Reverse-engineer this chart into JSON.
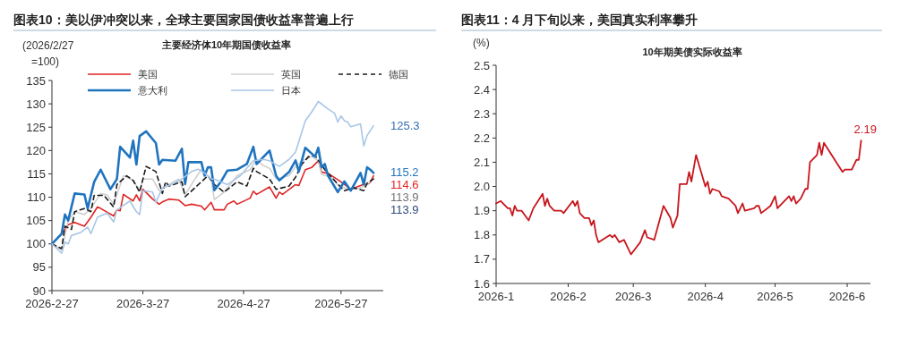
{
  "chart_data": [
    {
      "type": "line",
      "title": "图表10：美以伊冲突以来，全球主要国家国债收益率普遍上行",
      "subtitle": "主要经济体10年期国债收益率",
      "ylabel": "(2026/2/27=100)",
      "xlim": [
        "2026-02-27",
        "2026-06-09"
      ],
      "xticks": [
        {
          "value": "2026-02-27",
          "label": "2026-2-27"
        },
        {
          "value": "2026-03-27",
          "label": "2026-3-27"
        },
        {
          "value": "2026-04-27",
          "label": "2026-4-27"
        },
        {
          "value": "2026-05-27",
          "label": "2026-5-27"
        }
      ],
      "ylim": [
        90,
        135
      ],
      "yticks": [
        90,
        95,
        100,
        105,
        110,
        115,
        120,
        125,
        130,
        135
      ],
      "legend": "top",
      "series": [
        {
          "name": "美国",
          "color": "#e02424",
          "x": [
            "2026-02-27",
            "2026-03-02",
            "2026-03-04",
            "2026-03-06",
            "2026-03-09",
            "2026-03-11",
            "2026-03-13",
            "2026-03-14",
            "2026-03-18",
            "2026-03-19",
            "2026-03-20",
            "2026-03-21",
            "2026-03-24",
            "2026-03-25",
            "2026-03-26",
            "2026-03-27",
            "2026-03-30",
            "2026-04-01",
            "2026-04-02",
            "2026-04-04",
            "2026-04-07",
            "2026-04-09",
            "2026-04-11",
            "2026-04-14",
            "2026-04-15",
            "2026-04-17",
            "2026-04-18",
            "2026-04-21",
            "2026-04-22",
            "2026-04-24",
            "2026-04-25",
            "2026-04-29",
            "2026-04-30",
            "2026-05-01",
            "2026-05-05",
            "2026-05-07",
            "2026-05-08",
            "2026-05-09",
            "2026-05-13",
            "2026-05-14",
            "2026-05-16",
            "2026-05-18",
            "2026-05-20",
            "2026-05-21",
            "2026-05-23",
            "2026-05-27",
            "2026-05-30",
            "2026-06-02",
            "2026-06-03",
            "2026-06-04",
            "2026-06-05",
            "2026-06-06"
          ],
          "values": [
            100,
            102.2,
            104.1,
            104.6,
            103.8,
            105.7,
            107.9,
            107.6,
            106,
            107.3,
            107.1,
            110.6,
            109.2,
            110.5,
            109.2,
            111.7,
            109.6,
            108.5,
            109,
            109.6,
            109.4,
            108.2,
            108.5,
            108.1,
            107.3,
            108.9,
            107.3,
            107.3,
            108.5,
            109.2,
            108.5,
            109.8,
            111.3,
            110.6,
            112.2,
            109.8,
            111.1,
            110.6,
            112.7,
            112.5,
            115.9,
            116.4,
            117.8,
            115.4,
            115.1,
            113.3,
            111.7,
            112.5,
            112.8,
            112.7,
            113.2,
            114.6
          ]
        },
        {
          "name": "英国",
          "color": "#d0d0d0",
          "x": [
            "2026-02-27",
            "2026-03-02",
            "2026-03-04",
            "2026-03-06",
            "2026-03-09",
            "2026-03-11",
            "2026-03-14",
            "2026-03-16",
            "2026-03-18",
            "2026-03-21",
            "2026-03-24",
            "2026-03-26",
            "2026-03-27",
            "2026-03-30",
            "2026-04-01",
            "2026-04-04",
            "2026-04-07",
            "2026-04-09",
            "2026-04-12",
            "2026-04-14",
            "2026-04-17",
            "2026-04-18",
            "2026-04-21",
            "2026-04-25",
            "2026-04-29",
            "2026-05-01",
            "2026-05-03",
            "2026-05-05",
            "2026-05-07",
            "2026-05-11",
            "2026-05-13",
            "2026-05-15",
            "2026-05-18",
            "2026-05-20",
            "2026-05-21",
            "2026-05-24",
            "2026-05-26",
            "2026-05-29",
            "2026-06-02",
            "2026-06-04",
            "2026-06-06"
          ],
          "values": [
            100,
            98.7,
            105,
            106.9,
            106.3,
            107.6,
            110.8,
            110.5,
            108.5,
            114.6,
            113.6,
            111.4,
            113.9,
            113.9,
            111.4,
            112.7,
            113.9,
            110.5,
            113.9,
            115.9,
            113.9,
            109.5,
            111.1,
            114.6,
            115.9,
            118.1,
            116.8,
            116.2,
            113.9,
            114.6,
            116.5,
            117.8,
            118.7,
            117.8,
            114.9,
            114.3,
            112.7,
            111.7,
            112,
            112.8,
            113.9
          ]
        },
        {
          "name": "德国",
          "color": "#1a1a1a",
          "line_style": "dashed",
          "x": [
            "2026-02-27",
            "2026-03-02",
            "2026-03-03",
            "2026-03-05",
            "2026-03-06",
            "2026-03-09",
            "2026-03-11",
            "2026-03-12",
            "2026-03-15",
            "2026-03-18",
            "2026-03-19",
            "2026-03-22",
            "2026-03-24",
            "2026-03-26",
            "2026-03-28",
            "2026-03-31",
            "2026-04-02",
            "2026-04-03",
            "2026-04-04",
            "2026-04-08",
            "2026-04-09",
            "2026-04-12",
            "2026-04-16",
            "2026-04-18",
            "2026-04-21",
            "2026-04-25",
            "2026-04-28",
            "2026-04-30",
            "2026-05-01",
            "2026-05-05",
            "2026-05-07",
            "2026-05-11",
            "2026-05-13",
            "2026-05-15",
            "2026-05-17",
            "2026-05-19",
            "2026-05-22",
            "2026-05-26",
            "2026-05-28",
            "2026-05-31",
            "2026-06-03",
            "2026-06-04",
            "2026-06-06"
          ],
          "values": [
            100,
            99,
            103.8,
            103.1,
            106.9,
            107.6,
            106.9,
            110.4,
            110.4,
            107.9,
            112.7,
            114.6,
            113.6,
            111.1,
            116.6,
            115.5,
            110.8,
            113.3,
            112.4,
            113.3,
            110.1,
            112,
            114.6,
            112.7,
            111.1,
            113.3,
            112.4,
            116.2,
            115.5,
            113.9,
            111.7,
            112.4,
            114.3,
            117.1,
            118.7,
            118.9,
            115.9,
            112.8,
            111.4,
            112,
            111.4,
            113,
            113.9
          ]
        },
        {
          "name": "意大利",
          "color": "#1f74bf",
          "x": [
            "2026-02-27",
            "2026-03-02",
            "2026-03-03",
            "2026-03-04",
            "2026-03-06",
            "2026-03-09",
            "2026-03-10",
            "2026-03-12",
            "2026-03-14",
            "2026-03-17",
            "2026-03-19",
            "2026-03-20",
            "2026-03-23",
            "2026-03-24",
            "2026-03-25",
            "2026-03-26",
            "2026-03-28",
            "2026-03-31",
            "2026-04-01",
            "2026-04-02",
            "2026-04-06",
            "2026-04-08",
            "2026-04-09",
            "2026-04-10",
            "2026-04-14",
            "2026-04-15",
            "2026-04-16",
            "2026-04-17",
            "2026-04-18",
            "2026-04-20",
            "2026-04-22",
            "2026-04-25",
            "2026-04-28",
            "2026-04-30",
            "2026-05-01",
            "2026-05-05",
            "2026-05-07",
            "2026-05-08",
            "2026-05-11",
            "2026-05-13",
            "2026-05-14",
            "2026-05-16",
            "2026-05-19",
            "2026-05-20",
            "2026-05-21",
            "2026-05-22",
            "2026-05-23",
            "2026-05-26",
            "2026-05-28",
            "2026-05-30",
            "2026-06-02",
            "2026-06-03",
            "2026-06-04",
            "2026-06-05",
            "2026-06-06"
          ],
          "values": [
            100,
            102.2,
            106.3,
            105,
            110.8,
            110.6,
            107.6,
            113.3,
            115.9,
            111.7,
            113.9,
            120.8,
            118.5,
            122.1,
            117,
            123.1,
            124.1,
            121.6,
            117,
            118,
            117.8,
            120.4,
            112.8,
            117.5,
            117.5,
            114.6,
            116.4,
            116.4,
            111.5,
            113.3,
            115.7,
            115.9,
            117.1,
            120.8,
            117.1,
            120,
            114.6,
            113.6,
            115.4,
            117.9,
            115.5,
            120.6,
            118.7,
            120.6,
            116.4,
            117.1,
            114.6,
            111.1,
            113.4,
            111.4,
            115.2,
            112.7,
            116.4,
            115.9,
            115.2
          ]
        },
        {
          "name": "日本",
          "color": "#a9c6e6",
          "x": [
            "2026-02-27",
            "2026-03-02",
            "2026-03-03",
            "2026-03-04",
            "2026-03-05",
            "2026-03-08",
            "2026-03-10",
            "2026-03-11",
            "2026-03-13",
            "2026-03-16",
            "2026-03-18",
            "2026-03-19",
            "2026-03-23",
            "2026-03-25",
            "2026-03-26",
            "2026-03-27",
            "2026-03-30",
            "2026-03-31",
            "2026-04-02",
            "2026-04-05",
            "2026-04-08",
            "2026-04-11",
            "2026-04-13",
            "2026-04-15",
            "2026-04-17",
            "2026-04-18",
            "2026-04-22",
            "2026-04-26",
            "2026-04-30",
            "2026-05-03",
            "2026-05-05",
            "2026-05-08",
            "2026-05-11",
            "2026-05-13",
            "2026-05-14",
            "2026-05-16",
            "2026-05-18",
            "2026-05-20",
            "2026-05-23",
            "2026-05-25",
            "2026-05-26",
            "2026-05-27",
            "2026-05-28",
            "2026-05-29",
            "2026-05-30",
            "2026-06-02",
            "2026-06-03",
            "2026-06-04",
            "2026-06-06"
          ],
          "values": [
            100,
            98,
            100.4,
            100,
            101.8,
            102.5,
            103.6,
            102.2,
            105.7,
            106.6,
            104.7,
            107.3,
            109.2,
            106.9,
            106.3,
            111.4,
            111.1,
            108.9,
            112,
            112.8,
            113.9,
            115.5,
            116,
            115.2,
            113.9,
            113.9,
            112.7,
            114.6,
            117.8,
            118.1,
            117.8,
            116.6,
            118.1,
            119.7,
            121.9,
            126.4,
            128.3,
            130.5,
            128.9,
            128,
            126.1,
            127.4,
            126.4,
            126.1,
            125.1,
            125.7,
            121,
            123.2,
            125.3
          ]
        }
      ],
      "annotations": [
        {
          "text": "125.3",
          "x": "2026-06-06",
          "y": 125.3
        },
        {
          "text": "115.2",
          "x": "2026-06-06",
          "y": 115.2
        },
        {
          "text": "114.6",
          "x": "2026-06-06",
          "y": 114.6
        },
        {
          "text": "113.9",
          "x": "2026-06-06",
          "y": 113.9
        },
        {
          "text": "113.9",
          "x": "2026-06-06",
          "y": 113.9
        }
      ]
    },
    {
      "type": "line",
      "title": "图表11：4 月下旬以来，美国真实利率攀升",
      "subtitle": "10年期美债实际收益率",
      "ylabel": "(%)",
      "xlim": [
        "2026-01-01",
        "2026-06-11"
      ],
      "xticks": [
        {
          "value": "2026-01-01",
          "label": "2026-1"
        },
        {
          "value": "2026-02-01",
          "label": "2026-2"
        },
        {
          "value": "2026-03-01",
          "label": "2026-3"
        },
        {
          "value": "2026-04-01",
          "label": "2026-4"
        },
        {
          "value": "2026-05-01",
          "label": "2026-5"
        },
        {
          "value": "2026-06-01",
          "label": "2026-6"
        }
      ],
      "ylim": [
        1.6,
        2.5
      ],
      "yticks": [
        1.6,
        1.7,
        1.8,
        1.9,
        {
          "value": 2,
          "label": "2.0"
        },
        2.1,
        2.2,
        2.3,
        2.4,
        2.5
      ],
      "series": [
        {
          "color": "#c8161d",
          "x": [
            "2026-01-01",
            "2026-01-03",
            "2026-01-06",
            "2026-01-07",
            "2026-01-08",
            "2026-01-09",
            "2026-01-10",
            "2026-01-12",
            "2026-01-15",
            "2026-01-17",
            "2026-01-21",
            "2026-01-22",
            "2026-01-23",
            "2026-01-24",
            "2026-01-26",
            "2026-01-29",
            "2026-01-30",
            "2026-02-03",
            "2026-02-04",
            "2026-02-05",
            "2026-02-06",
            "2026-02-08",
            "2026-02-10",
            "2026-02-11",
            "2026-02-12",
            "2026-02-13",
            "2026-02-14",
            "2026-02-19",
            "2026-02-20",
            "2026-02-21",
            "2026-02-23",
            "2026-02-25",
            "2026-02-26",
            "2026-02-28",
            "2026-03-04",
            "2026-03-06",
            "2026-03-07",
            "2026-03-10",
            "2026-03-14",
            "2026-03-17",
            "2026-03-18",
            "2026-03-20",
            "2026-03-21",
            "2026-03-24",
            "2026-03-25",
            "2026-03-26",
            "2026-03-28",
            "2026-04-01",
            "2026-04-02",
            "2026-04-03",
            "2026-04-04",
            "2026-04-07",
            "2026-04-08",
            "2026-04-11",
            "2026-04-14",
            "2026-04-15",
            "2026-04-17",
            "2026-04-18",
            "2026-04-22",
            "2026-04-23",
            "2026-04-24",
            "2026-04-25",
            "2026-04-29",
            "2026-05-01",
            "2026-05-02",
            "2026-05-06",
            "2026-05-07",
            "2026-05-08",
            "2026-05-09",
            "2026-05-10",
            "2026-05-12",
            "2026-05-14",
            "2026-05-15",
            "2026-05-16",
            "2026-05-19",
            "2026-05-20",
            "2026-05-21",
            "2026-05-22",
            "2026-05-28",
            "2026-05-30",
            "2026-05-31",
            "2026-06-03",
            "2026-06-05",
            "2026-06-06",
            "2026-06-07"
          ],
          "values": [
            1.93,
            1.94,
            1.91,
            1.91,
            1.88,
            1.92,
            1.9,
            1.9,
            1.86,
            1.91,
            1.97,
            1.92,
            1.95,
            1.92,
            1.9,
            1.9,
            1.89,
            1.94,
            1.92,
            1.94,
            1.89,
            1.87,
            1.87,
            1.84,
            1.86,
            1.8,
            1.77,
            1.8,
            1.79,
            1.8,
            1.77,
            1.78,
            1.76,
            1.72,
            1.77,
            1.82,
            1.79,
            1.78,
            1.92,
            1.87,
            1.83,
            1.88,
            2.01,
            2.01,
            2.06,
            2.02,
            2.13,
            2.0,
            2.02,
            1.97,
            1.99,
            1.98,
            1.96,
            1.95,
            1.92,
            1.89,
            1.93,
            1.9,
            1.91,
            1.92,
            1.92,
            1.89,
            1.92,
            1.96,
            1.91,
            1.95,
            1.96,
            1.94,
            1.96,
            1.93,
            1.95,
            1.99,
            1.99,
            2.1,
            2.13,
            2.18,
            2.13,
            2.18,
            2.09,
            2.06,
            2.07,
            2.07,
            2.11,
            2.11,
            2.19
          ]
        }
      ],
      "annotations": [
        {
          "text": "2.19",
          "x": "2026-06-07",
          "y": 2.19
        }
      ]
    }
  ]
}
